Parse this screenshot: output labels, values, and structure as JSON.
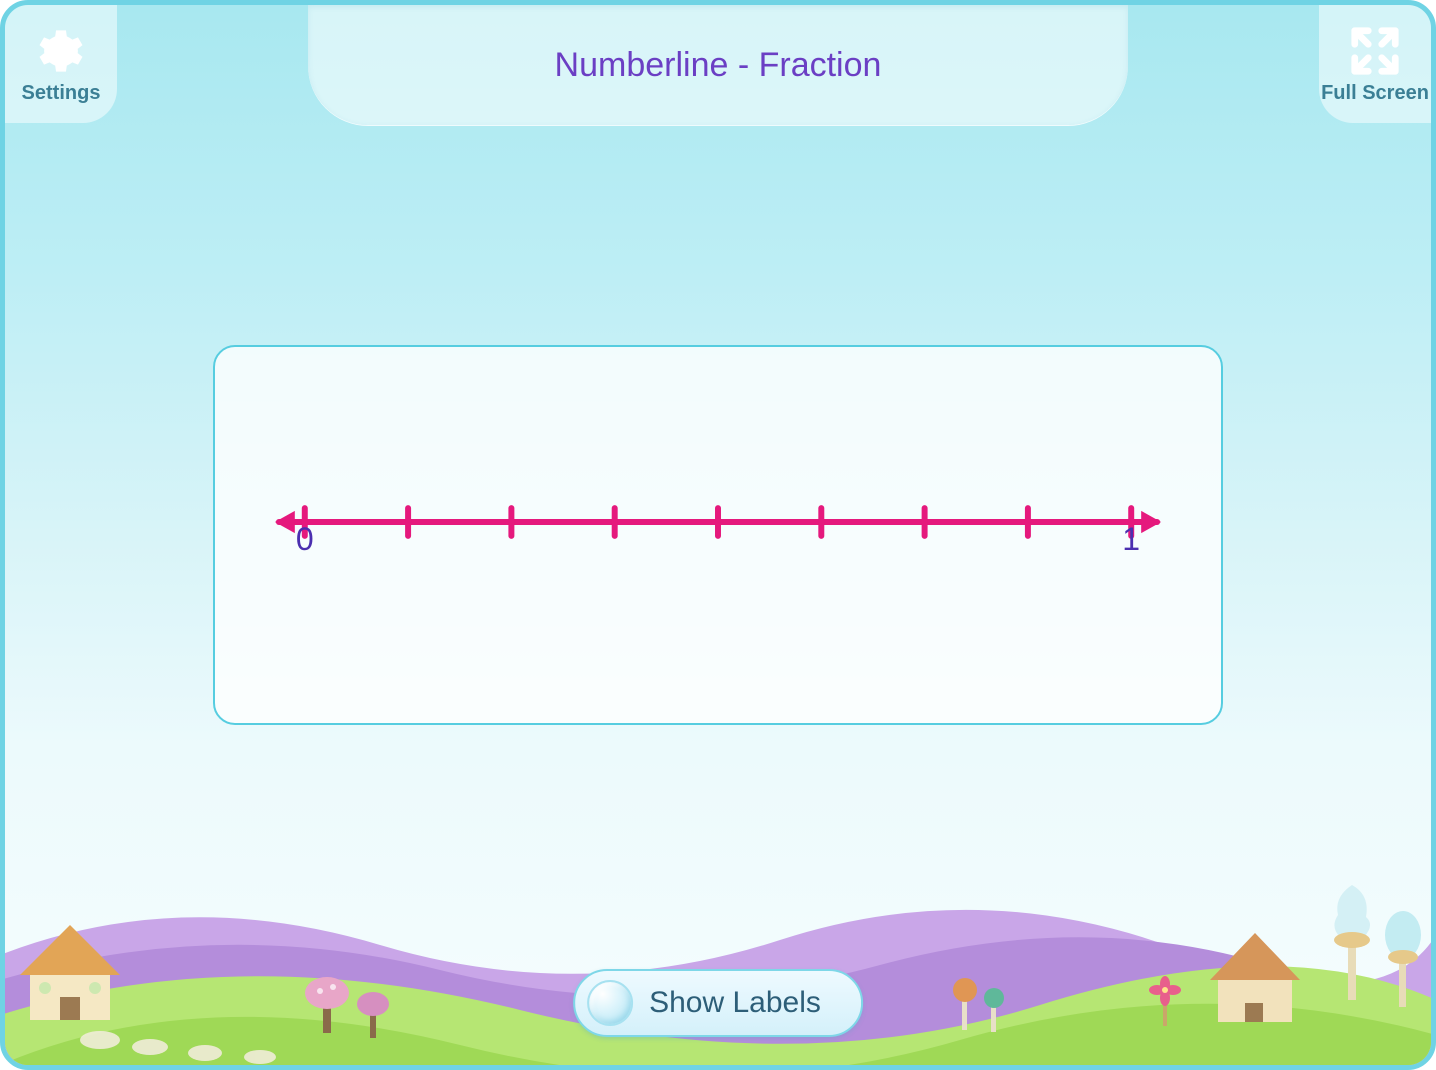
{
  "header": {
    "title": "Numberline - Fraction",
    "title_color": "#6b3fc4",
    "title_fontsize": 34,
    "settings_label": "Settings",
    "fullscreen_label": "Full Screen",
    "corner_label_color": "#3b7f95",
    "corner_icon_color": "#ffffff"
  },
  "panel": {
    "background_color": "rgba(255,255,255,0.78)",
    "border_color": "#56cde0",
    "border_radius": 22
  },
  "numberline": {
    "type": "numberline",
    "line_color": "#e5197d",
    "line_width": 6,
    "tick_height": 28,
    "tick_width": 6,
    "divisions": 8,
    "start_value": 0,
    "end_value": 1,
    "start_label": "0",
    "end_label": "1",
    "label_color": "#4b2fb0",
    "label_fontsize": 32,
    "arrow_size": 16
  },
  "controls": {
    "show_labels_button": "Show Labels",
    "button_text_color": "#2d5e78",
    "button_bg_top": "#eefaff",
    "button_bg_bottom": "#d4f0fa",
    "button_border": "#7ed7e8"
  },
  "colors": {
    "sky_top": "#a8e8f0",
    "sky_bottom": "#f6fdfe",
    "app_border": "#6fd3e4",
    "hill_green1": "#9fd956",
    "hill_green2": "#b6e673",
    "hill_purple1": "#c9a6e8",
    "hill_purple2": "#b48ddb",
    "path_tan": "#e8dcb8",
    "cottage_roof": "#e2a556",
    "cottage_wall": "#f5e8c4",
    "tree_trunk": "#8a6a4a",
    "tree_top": "#e8a6c8",
    "lollipop": "#c97fd6",
    "icecream": "#d4f0f5"
  }
}
